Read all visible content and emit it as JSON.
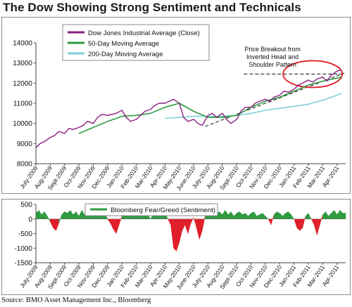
{
  "title": "The Dow Showing Strong Sentiment and Technicals",
  "source": "Source: BMO Asset Management Inc., Bloomberg",
  "colors": {
    "djia": "#8b1f7f",
    "ma50": "#2e9a40",
    "ma200": "#7fcfdc",
    "sentiment_pos": "#2e9a40",
    "sentiment_neg": "#e01f2a",
    "circle": "#e01f2a"
  },
  "chart_data": [
    {
      "type": "line",
      "annotation": "Price Breakout from Inverted Head and Shoulder Pattern",
      "ylim": [
        8000,
        14000
      ],
      "yticks": [
        8000,
        9000,
        10000,
        11000,
        12000,
        13000,
        14000
      ],
      "ytick_labels": [
        "8000",
        "9000",
        "10000",
        "11000",
        "12000",
        "13000",
        "14000"
      ],
      "xlim": [
        0,
        21.6
      ],
      "xtick_labels": [
        "July-2009",
        "Aug-2009",
        "Sept-2009",
        "Oct-2009",
        "Nov-2009",
        "Dec-2009",
        "Jan-2010",
        "Feb-2010",
        "Mar-2010",
        "Apr-2010",
        "May-2010",
        "June-2010",
        "July-2010",
        "Aug-2010",
        "Sept-2010",
        "Oct-2010",
        "Nov-2010",
        "Dec-2010",
        "Jan-2011",
        "Feb-2011",
        "Mar-2011",
        "Apr-2011"
      ],
      "grid": false,
      "legend_position": "top-left",
      "series": [
        {
          "name": "Dow Jones Industrial Average (Close)",
          "x": [
            0,
            0.3,
            0.6,
            1,
            1.3,
            1.6,
            2,
            2.3,
            2.6,
            3,
            3.3,
            3.6,
            4,
            4.3,
            4.6,
            5,
            5.3,
            5.6,
            6,
            6.3,
            6.6,
            7,
            7.3,
            7.6,
            8,
            8.3,
            8.6,
            9,
            9.3,
            9.6,
            10,
            10.3,
            10.6,
            11,
            11.3,
            11.6,
            12,
            12.3,
            12.6,
            13,
            13.3,
            13.6,
            14,
            14.3,
            14.6,
            15,
            15.3,
            15.6,
            16,
            16.3,
            16.6,
            17,
            17.3,
            17.6,
            18,
            18.3,
            18.6,
            19,
            19.3,
            19.6,
            20,
            20.3,
            20.6,
            21,
            21.3
          ],
          "values": [
            8800,
            9000,
            9100,
            9300,
            9400,
            9600,
            9500,
            9750,
            9700,
            9800,
            9900,
            10100,
            10000,
            10300,
            10450,
            10400,
            10450,
            10500,
            10650,
            10300,
            10100,
            10200,
            10400,
            10600,
            10700,
            10900,
            11000,
            11000,
            11100,
            11200,
            11000,
            10300,
            10100,
            10200,
            10000,
            9900,
            10400,
            10500,
            10300,
            10500,
            10200,
            10000,
            10200,
            10600,
            10800,
            10800,
            11000,
            11100,
            11200,
            11100,
            11300,
            11400,
            11600,
            11550,
            11700,
            11900,
            12000,
            12150,
            12050,
            12200,
            12300,
            12100,
            12400,
            12600,
            12650
          ]
        },
        {
          "name": "50-Day Moving Average",
          "x": [
            3,
            4,
            5,
            6,
            7,
            8,
            9,
            10,
            11,
            12,
            13,
            14,
            15,
            16,
            17,
            18,
            19,
            20,
            21,
            21.3
          ],
          "values": [
            9500,
            9800,
            10100,
            10350,
            10400,
            10500,
            10800,
            11000,
            10600,
            10300,
            10300,
            10400,
            10800,
            11100,
            11300,
            11600,
            11900,
            12100,
            12250,
            12300
          ]
        },
        {
          "name": "200-Day Moving Average",
          "x": [
            9,
            10,
            11,
            12,
            13,
            14,
            15,
            16,
            17,
            18,
            19,
            20,
            21,
            21.3
          ],
          "values": [
            10250,
            10300,
            10350,
            10350,
            10350,
            10400,
            10500,
            10650,
            10750,
            10850,
            10950,
            11150,
            11400,
            11500
          ]
        }
      ]
    },
    {
      "type": "area",
      "ylim": [
        -1500,
        500
      ],
      "yticks": [
        -1500,
        -1000,
        -500,
        0,
        500
      ],
      "ytick_labels": [
        "-1500",
        "-1000",
        "-500",
        "0",
        "500"
      ],
      "xlim": [
        0,
        21.6
      ],
      "xtick_labels": [
        "July-2009",
        "Aug-2009",
        "Sept-2009",
        "Oct-2009",
        "Nov-2009",
        "Dec-2009",
        "Jan-2010",
        "Feb-2010",
        "Mar-2010",
        "Apr-2010",
        "May-2010",
        "June-2010",
        "July-2010",
        "Aug-2010",
        "Sept-2010",
        "Oct-2010",
        "Nov-2010",
        "Dec-2010",
        "Jan-2011",
        "Feb-2011",
        "Mar-2011",
        "Apr-2011"
      ],
      "grid": false,
      "legend_position": "top",
      "series": [
        {
          "name": "Bloomberg Fear/Greed (Sentiment)",
          "x": [
            0,
            0.2,
            0.4,
            0.6,
            0.8,
            1,
            1.2,
            1.4,
            1.6,
            1.8,
            2,
            2.2,
            2.4,
            2.6,
            2.8,
            3,
            3.2,
            3.4,
            3.6,
            3.8,
            4,
            4.2,
            4.4,
            4.6,
            4.8,
            5,
            5.2,
            5.4,
            5.6,
            5.8,
            6,
            6.2,
            6.4,
            6.6,
            6.8,
            7,
            7.2,
            7.4,
            7.6,
            7.8,
            8,
            8.2,
            8.4,
            8.6,
            8.8,
            9,
            9.2,
            9.4,
            9.6,
            9.8,
            10,
            10.2,
            10.4,
            10.6,
            10.8,
            11,
            11.2,
            11.4,
            11.6,
            11.8,
            12,
            12.2,
            12.4,
            12.6,
            12.8,
            13,
            13.2,
            13.4,
            13.6,
            13.8,
            14,
            14.2,
            14.4,
            14.6,
            14.8,
            15,
            15.2,
            15.4,
            15.6,
            15.8,
            16,
            16.2,
            16.4,
            16.6,
            16.8,
            17,
            17.2,
            17.4,
            17.6,
            17.8,
            18,
            18.2,
            18.4,
            18.6,
            18.8,
            19,
            19.2,
            19.4,
            19.6,
            19.8,
            20,
            20.2,
            20.4,
            20.6,
            20.8,
            21,
            21.2,
            21.4
          ],
          "values": [
            200,
            300,
            150,
            250,
            100,
            -100,
            -300,
            -400,
            -150,
            150,
            250,
            200,
            300,
            150,
            250,
            100,
            300,
            150,
            250,
            200,
            100,
            200,
            250,
            100,
            200,
            0,
            -150,
            -350,
            -500,
            -200,
            100,
            250,
            150,
            200,
            100,
            150,
            250,
            100,
            200,
            150,
            0,
            200,
            250,
            100,
            150,
            250,
            0,
            -200,
            -1000,
            -1100,
            -800,
            -400,
            -200,
            -500,
            -150,
            50,
            -300,
            -700,
            -400,
            100,
            250,
            150,
            300,
            200,
            250,
            150,
            300,
            150,
            250,
            100,
            200,
            250,
            150,
            200,
            100,
            200,
            250,
            100,
            150,
            200,
            100,
            0,
            -200,
            150,
            250,
            200,
            100,
            200,
            250,
            150,
            0,
            -300,
            -400,
            -300,
            100,
            200,
            0,
            -200,
            -550,
            -200,
            150,
            250,
            100,
            200,
            300,
            150,
            300,
            200
          ]
        }
      ]
    }
  ]
}
